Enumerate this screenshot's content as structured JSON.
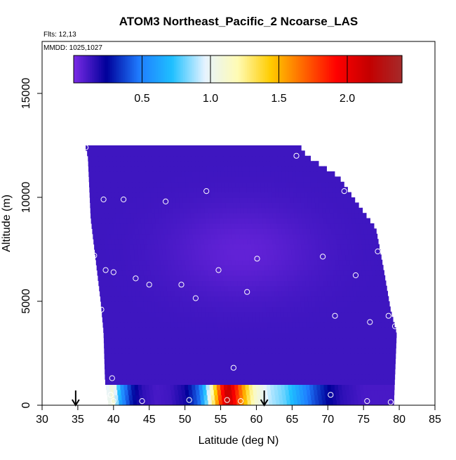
{
  "chart_data": {
    "type": "heatmap",
    "title": "ATOM3 Northeast_Pacific_2 Ncoarse_LAS",
    "subtitle_lines": [
      "Flts: 12,13",
      "MMDD: 1025,1027"
    ],
    "xlabel": "Latitude (deg N)",
    "ylabel": "Altitude (m)",
    "xlim": [
      30,
      85
    ],
    "ylim": [
      0,
      17500
    ],
    "x_ticks": [
      30,
      35,
      40,
      45,
      50,
      55,
      60,
      65,
      70,
      75,
      80,
      85
    ],
    "y_ticks": [
      0,
      5000,
      10000,
      15000
    ],
    "colorbar": {
      "range": [
        0,
        2.4
      ],
      "ticks": [
        0.5,
        1.0,
        1.5,
        2.0
      ],
      "tick_labels": [
        "0.5",
        "1.0",
        "1.5",
        "2.0"
      ],
      "colors": [
        "#7b2be6",
        "#00009a",
        "#1f7cff",
        "#1fc0ff",
        "#e6f3ff",
        "#fffbb4",
        "#ffcc00",
        "#ff6600",
        "#ff0000",
        "#c40000",
        "#a52a2a"
      ]
    },
    "field": {
      "left_edge": [
        [
          0,
          39.3
        ],
        [
          1200,
          38.8
        ],
        [
          3500,
          38.6
        ],
        [
          5000,
          38.2
        ],
        [
          7000,
          37.5
        ],
        [
          9000,
          36.8
        ],
        [
          12000,
          36.4
        ],
        [
          12500,
          36.0
        ]
      ],
      "right_edge": [
        [
          0,
          79.2
        ],
        [
          3500,
          79.6
        ],
        [
          4500,
          78.8
        ],
        [
          6500,
          77.8
        ],
        [
          8500,
          76.7
        ],
        [
          10000,
          73.5
        ],
        [
          11000,
          71.5
        ],
        [
          12000,
          67.0
        ],
        [
          12500,
          66.0
        ]
      ],
      "top_alt": 12500,
      "background_value": 0.12,
      "dark_core": {
        "lat": 58,
        "alt": 7400,
        "sigma_lat": 7,
        "sigma_alt": 1500,
        "min_value": 0.05
      },
      "boundary_layer": {
        "top_alt": 1000,
        "profile": [
          [
            39.0,
            0.95
          ],
          [
            40.0,
            1.1
          ],
          [
            41.0,
            0.6
          ],
          [
            42.5,
            0.3
          ],
          [
            44.0,
            0.15
          ],
          [
            46.0,
            0.1
          ],
          [
            48.0,
            0.12
          ],
          [
            50.0,
            0.2
          ],
          [
            52.0,
            0.45
          ],
          [
            53.0,
            0.8
          ],
          [
            54.0,
            1.3
          ],
          [
            55.0,
            1.8
          ],
          [
            56.0,
            2.2
          ],
          [
            57.0,
            1.9
          ],
          [
            58.0,
            1.6
          ],
          [
            59.0,
            1.3
          ],
          [
            60.0,
            1.1
          ],
          [
            62.0,
            0.9
          ],
          [
            64.0,
            0.8
          ],
          [
            66.0,
            0.6
          ],
          [
            68.0,
            0.4
          ],
          [
            70.0,
            0.25
          ],
          [
            72.0,
            0.15
          ],
          [
            75.0,
            0.1
          ],
          [
            79.2,
            0.1
          ]
        ]
      }
    },
    "sample_points": [
      [
        36.1,
        12400
      ],
      [
        65.6,
        12000
      ],
      [
        72.3,
        10300
      ],
      [
        53.0,
        10300
      ],
      [
        38.6,
        9900
      ],
      [
        41.4,
        9900
      ],
      [
        47.3,
        9800
      ],
      [
        37.3,
        7200
      ],
      [
        60.1,
        7050
      ],
      [
        69.3,
        7150
      ],
      [
        38.9,
        6500
      ],
      [
        40.0,
        6400
      ],
      [
        54.7,
        6500
      ],
      [
        73.9,
        6250
      ],
      [
        77.0,
        7400
      ],
      [
        43.1,
        6100
      ],
      [
        45.0,
        5800
      ],
      [
        49.5,
        5800
      ],
      [
        58.7,
        5450
      ],
      [
        51.5,
        5150
      ],
      [
        38.3,
        4600
      ],
      [
        71.0,
        4300
      ],
      [
        75.9,
        4000
      ],
      [
        78.5,
        4300
      ],
      [
        79.4,
        3800
      ],
      [
        56.8,
        1800
      ],
      [
        39.8,
        1300
      ],
      [
        44.0,
        200
      ],
      [
        50.6,
        250
      ],
      [
        55.9,
        250
      ],
      [
        57.8,
        200
      ],
      [
        70.4,
        500
      ],
      [
        75.5,
        200
      ],
      [
        78.8,
        150
      ],
      [
        40.0,
        200
      ],
      [
        39.6,
        500
      ]
    ],
    "arrows": [
      {
        "lat": 34.7
      },
      {
        "lat": 61.1
      }
    ]
  }
}
